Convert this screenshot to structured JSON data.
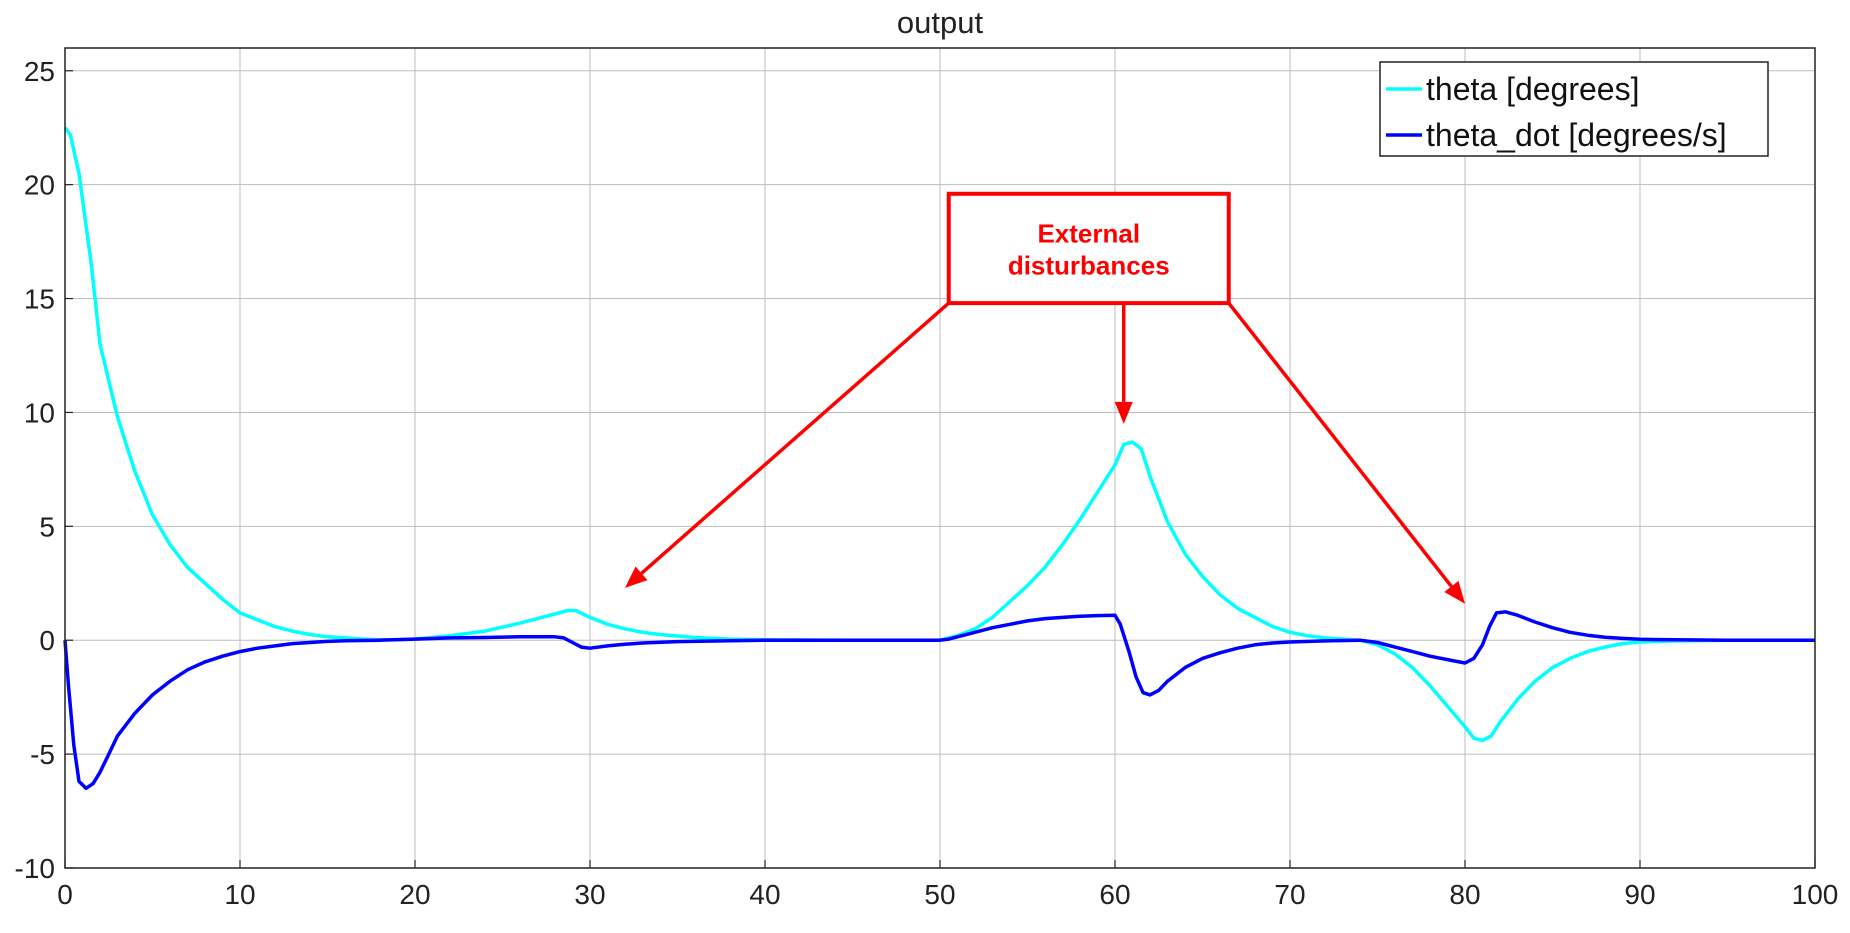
{
  "chart_data": {
    "type": "line",
    "title": "output",
    "xlabel": "",
    "ylabel": "",
    "xlim": [
      0,
      100
    ],
    "ylim": [
      -10,
      26
    ],
    "x_ticks": [
      0,
      10,
      20,
      30,
      40,
      50,
      60,
      70,
      80,
      90,
      100
    ],
    "y_ticks": [
      -10,
      -5,
      0,
      5,
      10,
      15,
      20,
      25
    ],
    "grid": true,
    "legend_position": "top-right",
    "series": [
      {
        "name": "theta [degrees]",
        "color": "#00FFFF",
        "points": [
          [
            0,
            22.5
          ],
          [
            0.3,
            22.2
          ],
          [
            0.8,
            20.5
          ],
          [
            1.5,
            16.5
          ],
          [
            2,
            13
          ],
          [
            3,
            9.8
          ],
          [
            4,
            7.4
          ],
          [
            5,
            5.5
          ],
          [
            6,
            4.2
          ],
          [
            7,
            3.2
          ],
          [
            8,
            2.5
          ],
          [
            9,
            1.8
          ],
          [
            10,
            1.2
          ],
          [
            11,
            0.9
          ],
          [
            12,
            0.6
          ],
          [
            13,
            0.4
          ],
          [
            14,
            0.25
          ],
          [
            15,
            0.15
          ],
          [
            16,
            0.1
          ],
          [
            17,
            0.05
          ],
          [
            18,
            0.02
          ],
          [
            19,
            0.02
          ],
          [
            20,
            0.05
          ],
          [
            22,
            0.2
          ],
          [
            24,
            0.4
          ],
          [
            26,
            0.75
          ],
          [
            27,
            0.95
          ],
          [
            28,
            1.15
          ],
          [
            28.7,
            1.3
          ],
          [
            29.2,
            1.3
          ],
          [
            30,
            1.0
          ],
          [
            31,
            0.7
          ],
          [
            32,
            0.5
          ],
          [
            33,
            0.35
          ],
          [
            34,
            0.25
          ],
          [
            36,
            0.12
          ],
          [
            38,
            0.05
          ],
          [
            40,
            0.02
          ],
          [
            45,
            0.0
          ],
          [
            50,
            0.0
          ],
          [
            51,
            0.2
          ],
          [
            52,
            0.5
          ],
          [
            53,
            1.0
          ],
          [
            54,
            1.7
          ],
          [
            55,
            2.4
          ],
          [
            56,
            3.2
          ],
          [
            57,
            4.2
          ],
          [
            58,
            5.3
          ],
          [
            59,
            6.5
          ],
          [
            60,
            7.7
          ],
          [
            60.5,
            8.6
          ],
          [
            61,
            8.7
          ],
          [
            61.5,
            8.4
          ],
          [
            62,
            7.2
          ],
          [
            63,
            5.2
          ],
          [
            64,
            3.8
          ],
          [
            65,
            2.8
          ],
          [
            66,
            2.0
          ],
          [
            67,
            1.4
          ],
          [
            68,
            1.0
          ],
          [
            69,
            0.6
          ],
          [
            70,
            0.35
          ],
          [
            71,
            0.2
          ],
          [
            72,
            0.1
          ],
          [
            73,
            0.05
          ],
          [
            74,
            0.0
          ],
          [
            75,
            -0.2
          ],
          [
            76,
            -0.6
          ],
          [
            77,
            -1.2
          ],
          [
            78,
            -2.0
          ],
          [
            79,
            -2.9
          ],
          [
            80,
            -3.8
          ],
          [
            80.5,
            -4.3
          ],
          [
            81,
            -4.4
          ],
          [
            81.5,
            -4.2
          ],
          [
            82,
            -3.6
          ],
          [
            83,
            -2.6
          ],
          [
            84,
            -1.8
          ],
          [
            85,
            -1.2
          ],
          [
            86,
            -0.8
          ],
          [
            87,
            -0.5
          ],
          [
            88,
            -0.3
          ],
          [
            89,
            -0.15
          ],
          [
            90,
            -0.08
          ],
          [
            92,
            -0.03
          ],
          [
            95,
            0.0
          ],
          [
            100,
            0.0
          ]
        ]
      },
      {
        "name": "theta_dot [degrees/s]",
        "color": "#0000FF",
        "points": [
          [
            0,
            0
          ],
          [
            0.2,
            -2.0
          ],
          [
            0.5,
            -4.6
          ],
          [
            0.8,
            -6.2
          ],
          [
            1.2,
            -6.5
          ],
          [
            1.6,
            -6.3
          ],
          [
            2,
            -5.8
          ],
          [
            2.5,
            -5.0
          ],
          [
            3,
            -4.2
          ],
          [
            4,
            -3.2
          ],
          [
            5,
            -2.4
          ],
          [
            6,
            -1.8
          ],
          [
            7,
            -1.3
          ],
          [
            8,
            -0.95
          ],
          [
            9,
            -0.7
          ],
          [
            10,
            -0.5
          ],
          [
            11,
            -0.35
          ],
          [
            12,
            -0.25
          ],
          [
            13,
            -0.15
          ],
          [
            14,
            -0.1
          ],
          [
            15,
            -0.05
          ],
          [
            16,
            -0.02
          ],
          [
            18,
            0.0
          ],
          [
            20,
            0.05
          ],
          [
            22,
            0.1
          ],
          [
            24,
            0.12
          ],
          [
            26,
            0.15
          ],
          [
            28,
            0.15
          ],
          [
            28.5,
            0.1
          ],
          [
            29,
            -0.1
          ],
          [
            29.5,
            -0.3
          ],
          [
            30,
            -0.35
          ],
          [
            31,
            -0.25
          ],
          [
            32,
            -0.18
          ],
          [
            33,
            -0.12
          ],
          [
            35,
            -0.06
          ],
          [
            38,
            -0.02
          ],
          [
            40,
            0.0
          ],
          [
            45,
            0.0
          ],
          [
            50,
            0.0
          ],
          [
            50.5,
            0.05
          ],
          [
            51,
            0.15
          ],
          [
            52,
            0.35
          ],
          [
            53,
            0.55
          ],
          [
            54,
            0.7
          ],
          [
            55,
            0.85
          ],
          [
            56,
            0.95
          ],
          [
            57,
            1.0
          ],
          [
            58,
            1.05
          ],
          [
            59,
            1.08
          ],
          [
            60,
            1.1
          ],
          [
            60.3,
            0.7
          ],
          [
            60.8,
            -0.5
          ],
          [
            61.2,
            -1.6
          ],
          [
            61.6,
            -2.3
          ],
          [
            62,
            -2.4
          ],
          [
            62.5,
            -2.2
          ],
          [
            63,
            -1.8
          ],
          [
            64,
            -1.2
          ],
          [
            65,
            -0.8
          ],
          [
            66,
            -0.55
          ],
          [
            67,
            -0.35
          ],
          [
            68,
            -0.2
          ],
          [
            69,
            -0.12
          ],
          [
            70,
            -0.08
          ],
          [
            72,
            -0.03
          ],
          [
            74,
            0.0
          ],
          [
            75,
            -0.1
          ],
          [
            76,
            -0.3
          ],
          [
            77,
            -0.5
          ],
          [
            78,
            -0.7
          ],
          [
            79,
            -0.85
          ],
          [
            80,
            -1.0
          ],
          [
            80.5,
            -0.8
          ],
          [
            81,
            -0.2
          ],
          [
            81.4,
            0.6
          ],
          [
            81.8,
            1.2
          ],
          [
            82.3,
            1.25
          ],
          [
            83,
            1.1
          ],
          [
            84,
            0.8
          ],
          [
            85,
            0.55
          ],
          [
            86,
            0.35
          ],
          [
            87,
            0.22
          ],
          [
            88,
            0.13
          ],
          [
            89,
            0.08
          ],
          [
            90,
            0.04
          ],
          [
            92,
            0.02
          ],
          [
            95,
            0.0
          ],
          [
            100,
            0.0
          ]
        ]
      }
    ],
    "annotations": [
      {
        "text": "External disturbances",
        "text_lines": [
          "External",
          "disturbances"
        ],
        "color": "#FF0000",
        "box_data": {
          "x_range": [
            50.5,
            66.5
          ],
          "y_range": [
            14.8,
            19.6
          ]
        },
        "arrows": [
          {
            "from": [
              50.5,
              14.8
            ],
            "to": [
              32,
              2.3
            ]
          },
          {
            "from": [
              60.5,
              14.8
            ],
            "to": [
              60.5,
              9.5
            ]
          },
          {
            "from": [
              66.5,
              14.8
            ],
            "to": [
              80,
              1.6
            ]
          }
        ]
      }
    ]
  }
}
